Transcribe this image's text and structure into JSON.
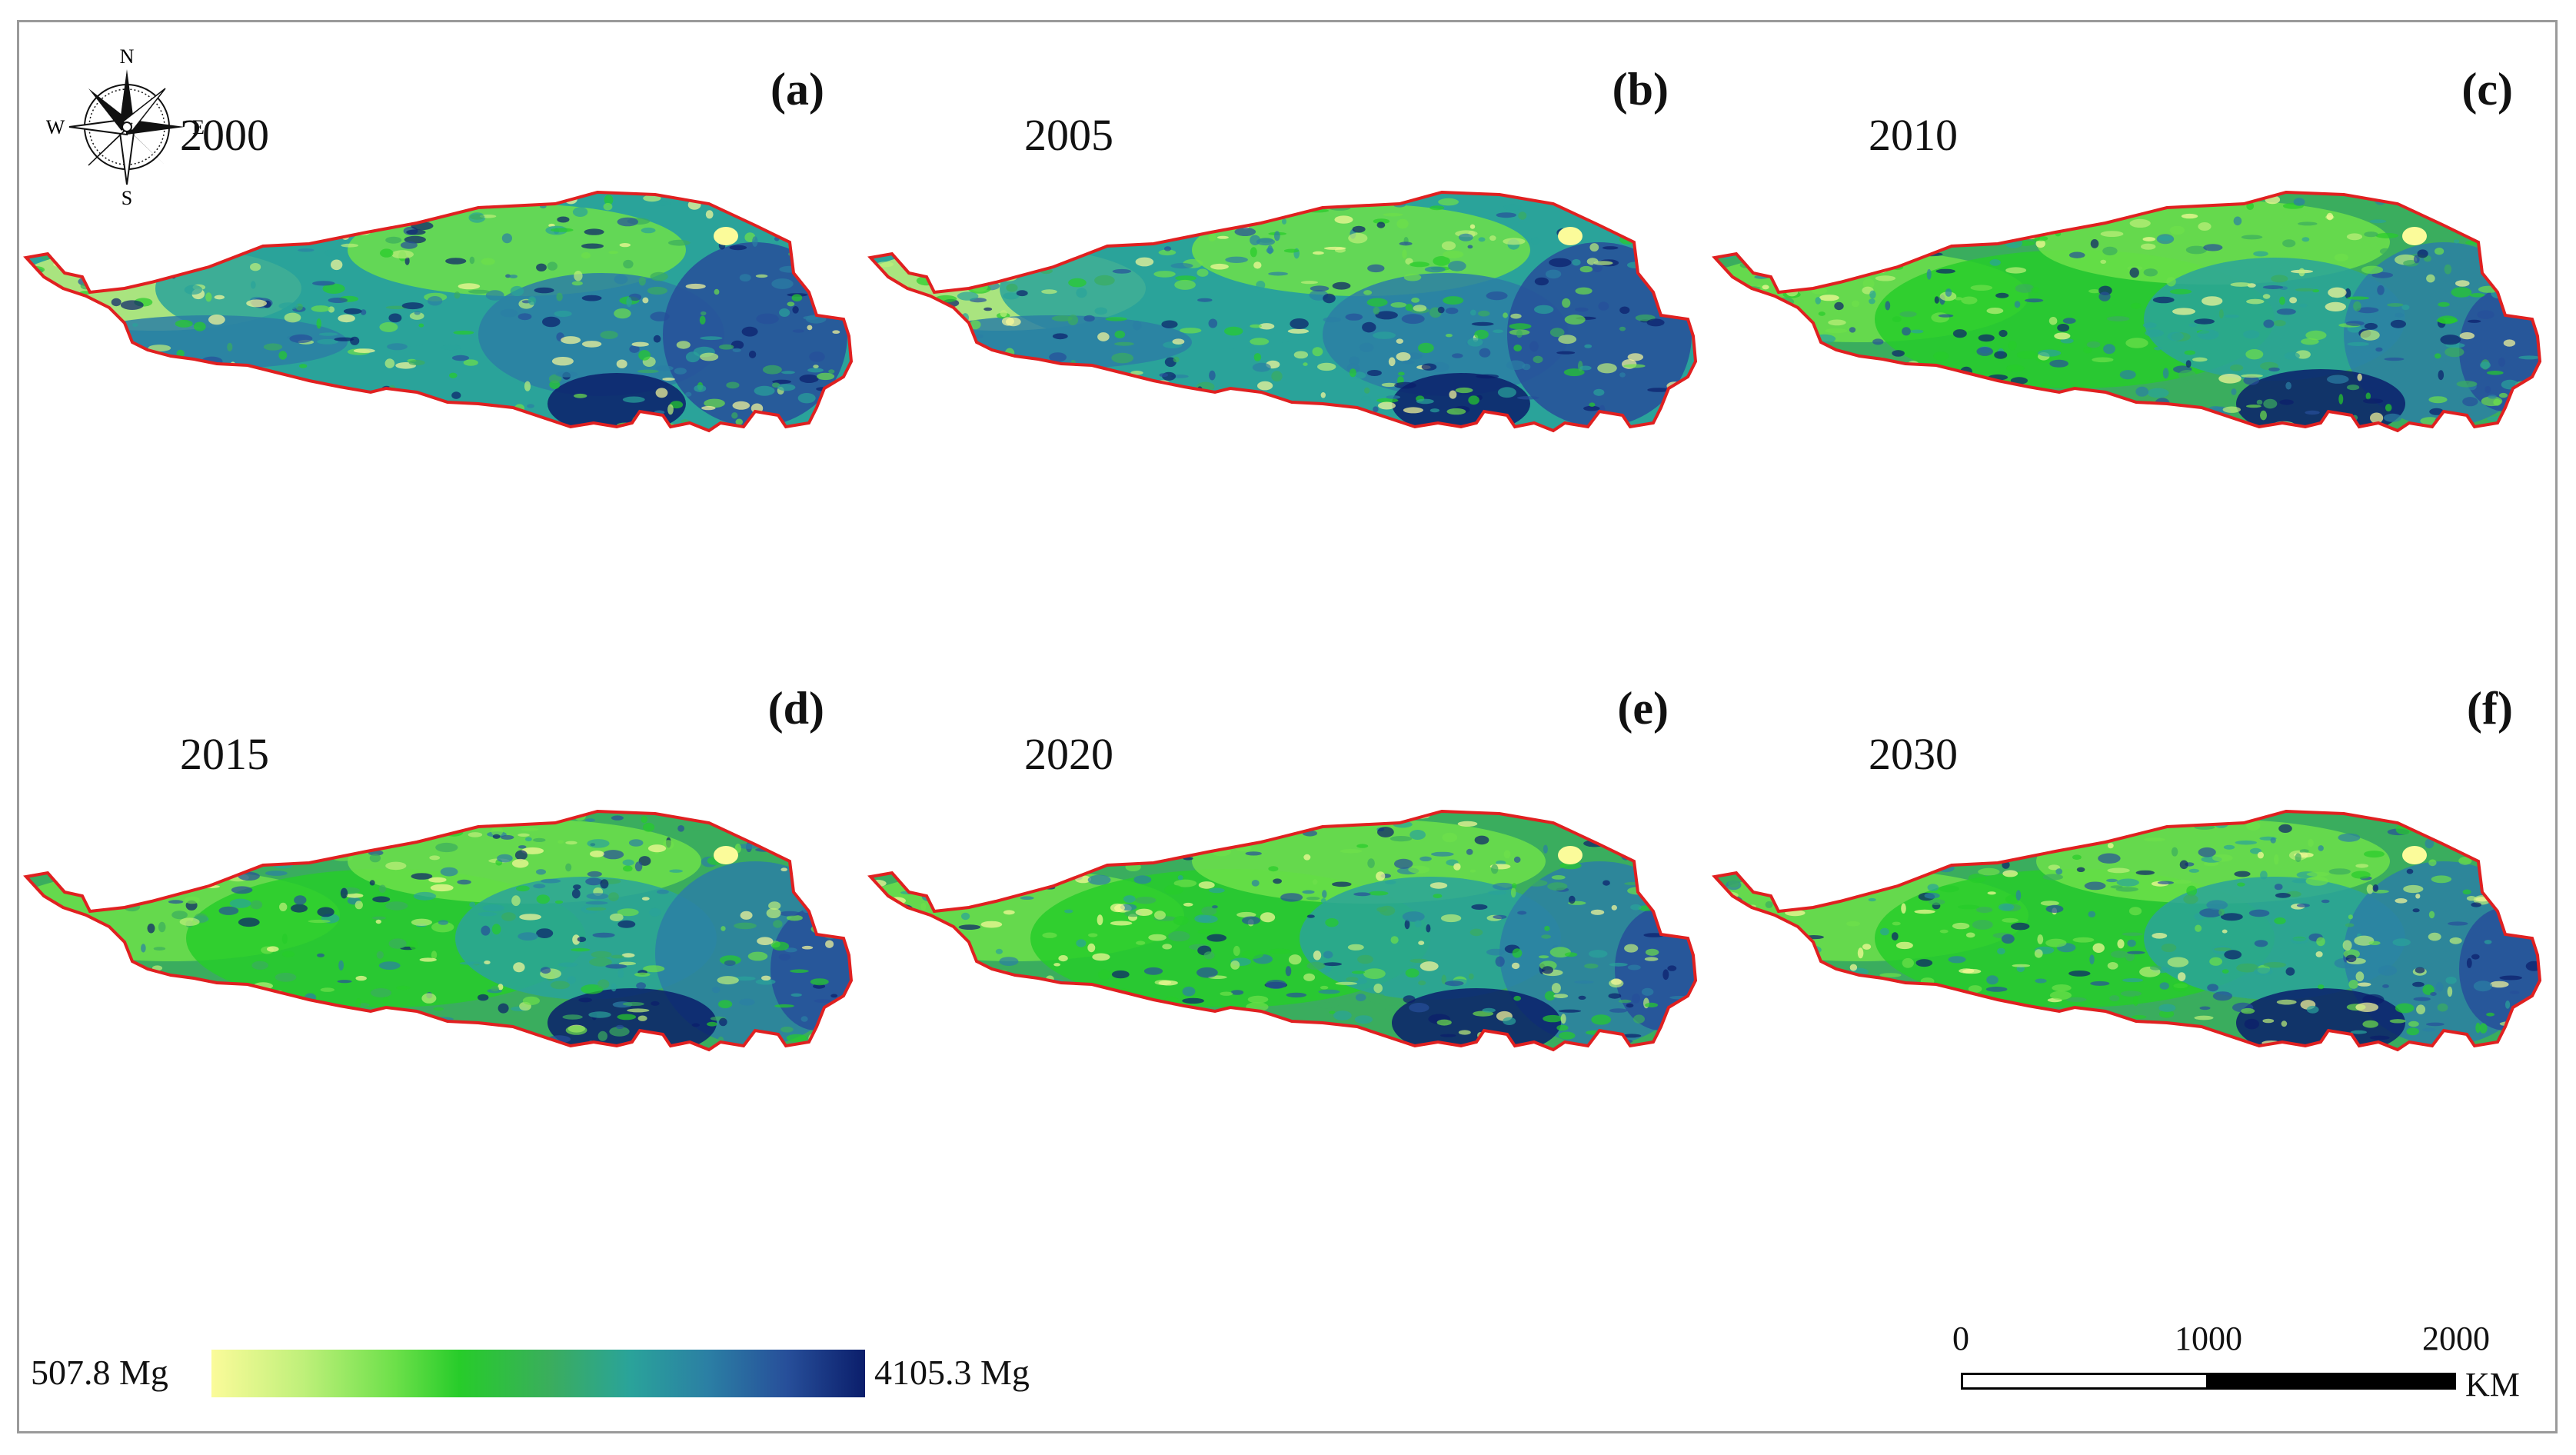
{
  "compass": {
    "north": "N",
    "south": "S",
    "east": "E",
    "west": "W"
  },
  "panels": [
    {
      "letter": "(a)",
      "year": "2000",
      "pattern": "early"
    },
    {
      "letter": "(b)",
      "year": "2005",
      "pattern": "early"
    },
    {
      "letter": "(c)",
      "year": "2010",
      "pattern": "late"
    },
    {
      "letter": "(d)",
      "year": "2015",
      "pattern": "late"
    },
    {
      "letter": "(e)",
      "year": "2020",
      "pattern": "late"
    },
    {
      "letter": "(f)",
      "year": "2030",
      "pattern": "late"
    }
  ],
  "legend": {
    "min_label": "507.8 Mg",
    "max_label": "4105.3 Mg",
    "colors": [
      "#fbfb9a",
      "#bff07a",
      "#6de04a",
      "#27cc2a",
      "#3aad5e",
      "#2aa39a",
      "#2b7fa4",
      "#274f9a",
      "#0b1e6b"
    ]
  },
  "scale_bar": {
    "ticks": [
      "0",
      "1000",
      "2000"
    ],
    "unit": "KM"
  },
  "colors": {
    "boundary": "#e02020",
    "frame": "#9a9a9a"
  }
}
